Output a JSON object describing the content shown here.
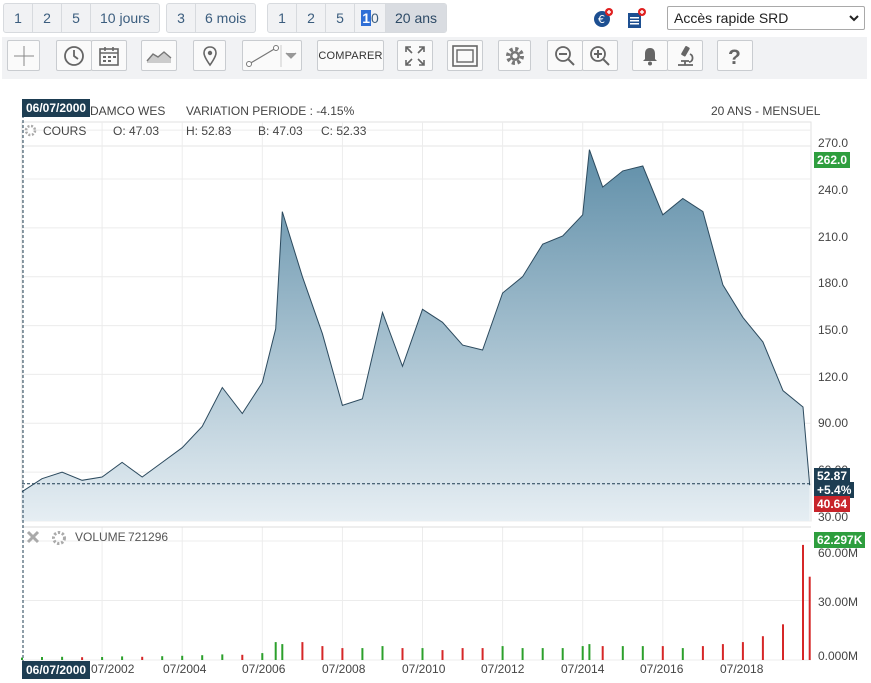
{
  "periods": {
    "days": [
      "1",
      "2",
      "5",
      "10 jours"
    ],
    "months": [
      "3",
      "6 mois"
    ],
    "years_a": "1",
    "years_b": "2",
    "years_c": "5",
    "years_d_hl": "1",
    "years_d_rest": "0",
    "years_20": "20 ans"
  },
  "quick_access": {
    "label": "Accès rapide SRD"
  },
  "toolbar": {
    "compare_label": "COMPARER"
  },
  "chart_header": {
    "date": "06/07/2000",
    "name": "DAMCO WES",
    "variation": "VARIATION PERIODE : -4.15%",
    "range": "20 ANS - MENSUEL",
    "series_label": "COURS",
    "o": "O: 47.03",
    "h": "H: 52.83",
    "b": "B: 47.03",
    "c": "C: 52.33"
  },
  "price_axis": [
    "270.0",
    "240.0",
    "210.0",
    "180.0",
    "150.0",
    "120.0",
    "90.00",
    "60.00",
    "30.00"
  ],
  "price_boxes": {
    "high": "262.0",
    "last": "52.87",
    "change": "+5.4%",
    "low": "40.64"
  },
  "volume_panel": {
    "label": "VOLUME",
    "value": "721296",
    "axis": [
      "60.00M",
      "30.00M",
      "0.000M"
    ],
    "last": "62.297K"
  },
  "x_axis": [
    "07/2002",
    "07/2004",
    "07/2006",
    "07/2008",
    "07/2010",
    "07/2012",
    "07/2014",
    "07/2016",
    "07/2018"
  ],
  "bottom_date": "06/07/2000",
  "colors": {
    "accent": "#1d3d52",
    "up": "#2ca02c",
    "down": "#d62728",
    "area_top": "#5f8ea8",
    "line": "#2c4a5e"
  },
  "chart_data": {
    "type": "area",
    "title": "",
    "y_range": [
      30,
      275
    ],
    "x": [
      "2000-07",
      "2001-01",
      "2001-07",
      "2002-01",
      "2002-07",
      "2003-01",
      "2003-07",
      "2004-01",
      "2004-07",
      "2005-01",
      "2005-07",
      "2006-01",
      "2006-07",
      "2006-11",
      "2007-01",
      "2007-07",
      "2008-01",
      "2008-07",
      "2009-01",
      "2009-07",
      "2010-01",
      "2010-07",
      "2011-01",
      "2011-07",
      "2012-01",
      "2012-07",
      "2013-01",
      "2013-07",
      "2014-01",
      "2014-07",
      "2014-09",
      "2015-01",
      "2015-07",
      "2016-01",
      "2016-07",
      "2017-01",
      "2017-07",
      "2018-01",
      "2018-07",
      "2019-01",
      "2019-07",
      "2020-01",
      "2020-03"
    ],
    "values": [
      48,
      56,
      60,
      55,
      57,
      66,
      57,
      66,
      75,
      88,
      112,
      96,
      115,
      148,
      220,
      180,
      145,
      101,
      105,
      158,
      125,
      160,
      152,
      138,
      135,
      170,
      180,
      200,
      205,
      218,
      258,
      235,
      245,
      248,
      218,
      228,
      220,
      175,
      155,
      140,
      110,
      100,
      52
    ],
    "volume": [
      1.2,
      1.5,
      1.6,
      1.4,
      1.5,
      1.8,
      1.6,
      1.9,
      2.1,
      2.4,
      2.8,
      2.6,
      3.5,
      9,
      8,
      9,
      7,
      6,
      6,
      7,
      6,
      6,
      5,
      6,
      6,
      7,
      6,
      6,
      6,
      7,
      8,
      7,
      7,
      7,
      7,
      6,
      7,
      8,
      9,
      12,
      18,
      58,
      42
    ]
  }
}
